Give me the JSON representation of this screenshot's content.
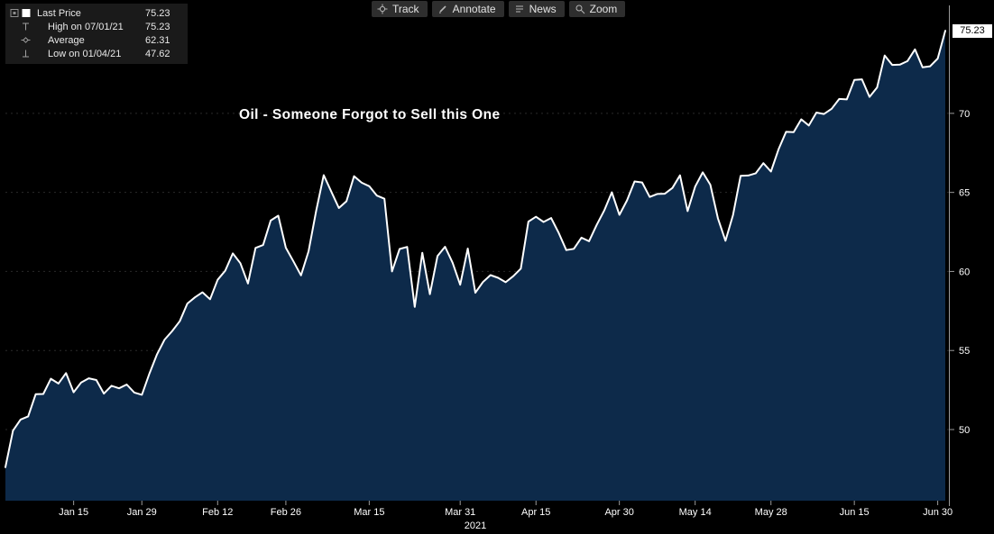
{
  "legend": {
    "items": [
      {
        "icons": [
          "panel-expand-icon",
          "last-price-swatch"
        ],
        "label": "Last Price",
        "value": "75.23"
      },
      {
        "icons": [
          "high-marker-icon"
        ],
        "label": "High on 07/01/21",
        "value": "75.23"
      },
      {
        "icons": [
          "average-marker-icon"
        ],
        "label": "Average",
        "value": "62.31"
      },
      {
        "icons": [
          "low-marker-icon"
        ],
        "label": "Low on 01/04/21",
        "value": "47.62"
      }
    ]
  },
  "toolbar": {
    "buttons": [
      {
        "icon": "track-icon",
        "label": "Track"
      },
      {
        "icon": "annotate-icon",
        "label": "Annotate"
      },
      {
        "icon": "news-icon",
        "label": "News"
      },
      {
        "icon": "zoom-icon",
        "label": "Zoom"
      }
    ]
  },
  "chart_data": {
    "type": "area",
    "title": "Oil - Someone Forgot to Sell this One",
    "x_axis_year_label": "2021",
    "ylim": [
      45.5,
      76.6
    ],
    "yticks": [
      50,
      55,
      60,
      65,
      70
    ],
    "last_price": 75.23,
    "last_price_label": "75.23",
    "high": {
      "date": "07/01/21",
      "value": 75.23
    },
    "low": {
      "date": "01/04/21",
      "value": 47.62
    },
    "average": 62.31,
    "xticks": [
      "Jan 15",
      "Jan 29",
      "Feb 12",
      "Feb 26",
      "Mar 15",
      "Mar 31",
      "Apr 15",
      "Apr 30",
      "May 14",
      "May 28",
      "Jun 15",
      "Jun 30"
    ],
    "legend_position": "top-left",
    "grid": "horizontal-dotted",
    "colors": {
      "line": "#ffffff",
      "fill": "#0d2a4a",
      "background": "#000000",
      "axis": "#9a9a9a",
      "tick_text": "#ffffff",
      "grid": "#2a2a2a",
      "last_price_box_bg": "#ffffff",
      "last_price_box_text": "#000000"
    },
    "series": [
      {
        "name": "Last Price",
        "dates": [
          "Jan 4",
          "Jan 5",
          "Jan 6",
          "Jan 7",
          "Jan 8",
          "Jan 11",
          "Jan 12",
          "Jan 13",
          "Jan 14",
          "Jan 15",
          "Jan 19",
          "Jan 20",
          "Jan 21",
          "Jan 22",
          "Jan 25",
          "Jan 26",
          "Jan 27",
          "Jan 28",
          "Jan 29",
          "Feb 1",
          "Feb 2",
          "Feb 3",
          "Feb 4",
          "Feb 5",
          "Feb 8",
          "Feb 9",
          "Feb 10",
          "Feb 11",
          "Feb 12",
          "Feb 16",
          "Feb 17",
          "Feb 18",
          "Feb 19",
          "Feb 22",
          "Feb 23",
          "Feb 24",
          "Feb 25",
          "Feb 26",
          "Mar 1",
          "Mar 2",
          "Mar 3",
          "Mar 4",
          "Mar 5",
          "Mar 8",
          "Mar 9",
          "Mar 10",
          "Mar 11",
          "Mar 12",
          "Mar 15",
          "Mar 16",
          "Mar 17",
          "Mar 18",
          "Mar 19",
          "Mar 22",
          "Mar 23",
          "Mar 24",
          "Mar 25",
          "Mar 26",
          "Mar 29",
          "Mar 30",
          "Mar 31",
          "Apr 1",
          "Apr 5",
          "Apr 6",
          "Apr 7",
          "Apr 8",
          "Apr 9",
          "Apr 12",
          "Apr 13",
          "Apr 14",
          "Apr 15",
          "Apr 16",
          "Apr 19",
          "Apr 20",
          "Apr 21",
          "Apr 22",
          "Apr 23",
          "Apr 26",
          "Apr 27",
          "Apr 28",
          "Apr 29",
          "Apr 30",
          "May 3",
          "May 4",
          "May 5",
          "May 6",
          "May 7",
          "May 10",
          "May 11",
          "May 12",
          "May 13",
          "May 14",
          "May 17",
          "May 18",
          "May 19",
          "May 20",
          "May 21",
          "May 24",
          "May 25",
          "May 26",
          "May 27",
          "May 28",
          "Jun 1",
          "Jun 2",
          "Jun 3",
          "Jun 4",
          "Jun 7",
          "Jun 8",
          "Jun 9",
          "Jun 10",
          "Jun 11",
          "Jun 14",
          "Jun 15",
          "Jun 16",
          "Jun 17",
          "Jun 18",
          "Jun 21",
          "Jun 22",
          "Jun 23",
          "Jun 24",
          "Jun 25",
          "Jun 28",
          "Jun 29",
          "Jun 30",
          "Jul 1"
        ],
        "values": [
          47.62,
          49.93,
          50.63,
          50.83,
          52.24,
          52.25,
          53.21,
          52.91,
          53.57,
          52.36,
          52.98,
          53.24,
          53.13,
          52.27,
          52.77,
          52.61,
          52.85,
          52.34,
          52.2,
          53.55,
          54.76,
          55.69,
          56.23,
          56.85,
          57.97,
          58.36,
          58.68,
          58.24,
          59.47,
          60.05,
          61.14,
          60.52,
          59.24,
          61.49,
          61.67,
          63.22,
          63.53,
          61.5,
          60.64,
          59.75,
          61.28,
          63.83,
          66.09,
          65.05,
          64.01,
          64.44,
          66.02,
          65.61,
          65.39,
          64.8,
          64.6,
          60.0,
          61.42,
          61.55,
          57.76,
          61.18,
          58.56,
          60.97,
          61.56,
          60.55,
          59.16,
          61.45,
          58.65,
          59.33,
          59.77,
          59.6,
          59.32,
          59.7,
          60.18,
          63.15,
          63.46,
          63.13,
          63.38,
          62.44,
          61.35,
          61.43,
          62.14,
          61.91,
          62.94,
          63.86,
          65.01,
          63.58,
          64.49,
          65.69,
          65.63,
          64.71,
          64.9,
          64.92,
          65.28,
          66.08,
          63.82,
          65.37,
          66.27,
          65.49,
          63.36,
          61.94,
          63.58,
          66.05,
          66.07,
          66.21,
          66.85,
          66.32,
          67.72,
          68.83,
          68.81,
          69.62,
          69.23,
          70.05,
          69.96,
          70.29,
          70.91,
          70.88,
          72.12,
          72.15,
          71.04,
          71.64,
          73.66,
          73.06,
          73.08,
          73.3,
          74.05,
          72.91,
          72.98,
          73.47,
          75.23
        ]
      }
    ]
  }
}
